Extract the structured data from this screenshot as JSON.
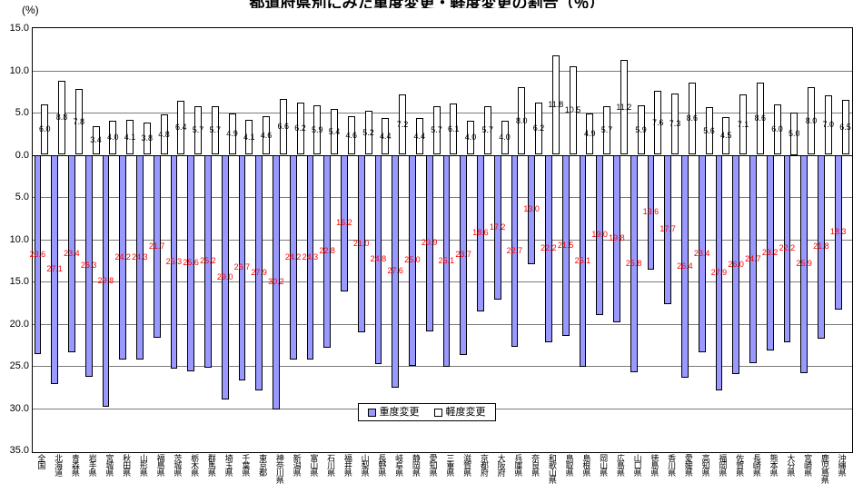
{
  "title_cropped": "都道府県別にみた重度変更・軽度変更の割合（％）",
  "y_axis_unit": "(%)",
  "y_axis": {
    "tick_labels": [
      "15.0",
      "10.0",
      "5.0",
      "0.0",
      "5.0",
      "10.0",
      "15.0",
      "20.0",
      "25.0",
      "30.0",
      "35.0"
    ],
    "zero_index": 3
  },
  "legend": {
    "items": [
      {
        "label": "重度変更",
        "color": "#9999ff"
      },
      {
        "label": "軽度変更",
        "color": "#ffffff"
      }
    ]
  },
  "chart_data": {
    "type": "bar",
    "subtype": "diverging_vertical",
    "title": "都道府県別にみた重度変更・軽度変更の割合（％）",
    "note": "title is cropped at the top edge of the screenshot; upper white bars = 軽度変更 (%), lower blue bars = 重度変更 (%)",
    "xlabel": "",
    "ylabel": "(%)",
    "grid": true,
    "legend_position": "bottom-center-inside-plot",
    "axis": {
      "up_max": 15.0,
      "down_max": 35.0,
      "tick_interval": 5.0,
      "unit": "%"
    },
    "categories": [
      "全国",
      "北海道",
      "青森県",
      "岩手県",
      "宮城県",
      "秋田県",
      "山形県",
      "福島県",
      "茨城県",
      "栃木県",
      "群馬県",
      "埼玉県",
      "千葉県",
      "東京都",
      "神奈川県",
      "新潟県",
      "富山県",
      "石川県",
      "福井県",
      "山梨県",
      "長野県",
      "岐阜県",
      "静岡県",
      "愛知県",
      "三重県",
      "滋賀県",
      "京都府",
      "大阪府",
      "兵庫県",
      "奈良県",
      "和歌山県",
      "鳥取県",
      "島根県",
      "岡山県",
      "広島県",
      "山口県",
      "徳島県",
      "香川県",
      "愛媛県",
      "高知県",
      "福岡県",
      "佐賀県",
      "長崎県",
      "熊本県",
      "大分県",
      "宮崎県",
      "鹿児島県",
      "沖縄県"
    ],
    "series": [
      {
        "name": "重度変更",
        "direction": "down",
        "color": "#9999ff",
        "label_color": "#ff0000",
        "values": [
          23.6,
          27.1,
          23.4,
          26.3,
          29.8,
          24.2,
          24.3,
          21.7,
          25.3,
          25.6,
          25.2,
          29.0,
          26.7,
          27.9,
          30.2,
          24.2,
          24.3,
          22.8,
          16.2,
          21.0,
          24.8,
          27.6,
          25.0,
          20.9,
          25.1,
          23.7,
          18.6,
          17.2,
          22.7,
          13.0,
          22.2,
          21.5,
          25.1,
          19.0,
          19.8,
          25.8,
          13.6,
          17.7,
          26.4,
          23.4,
          27.9,
          26.0,
          24.7,
          23.2,
          22.2,
          25.9,
          21.8,
          18.3
        ]
      },
      {
        "name": "軽度変更",
        "direction": "up",
        "color": "#ffffff",
        "label_color": "#000000",
        "values": [
          6.0,
          8.8,
          7.8,
          3.4,
          4.0,
          4.1,
          3.8,
          4.8,
          6.4,
          5.7,
          5.7,
          4.9,
          4.1,
          4.6,
          6.6,
          6.2,
          5.9,
          5.4,
          4.6,
          5.2,
          4.4,
          7.2,
          4.4,
          5.7,
          6.1,
          4.0,
          5.7,
          4.0,
          8.0,
          6.2,
          11.8,
          10.5,
          4.9,
          5.7,
          11.2,
          5.9,
          7.6,
          7.3,
          8.6,
          5.6,
          4.5,
          7.1,
          8.6,
          6.0,
          5.0,
          8.0,
          7.0,
          6.5
        ]
      }
    ]
  }
}
